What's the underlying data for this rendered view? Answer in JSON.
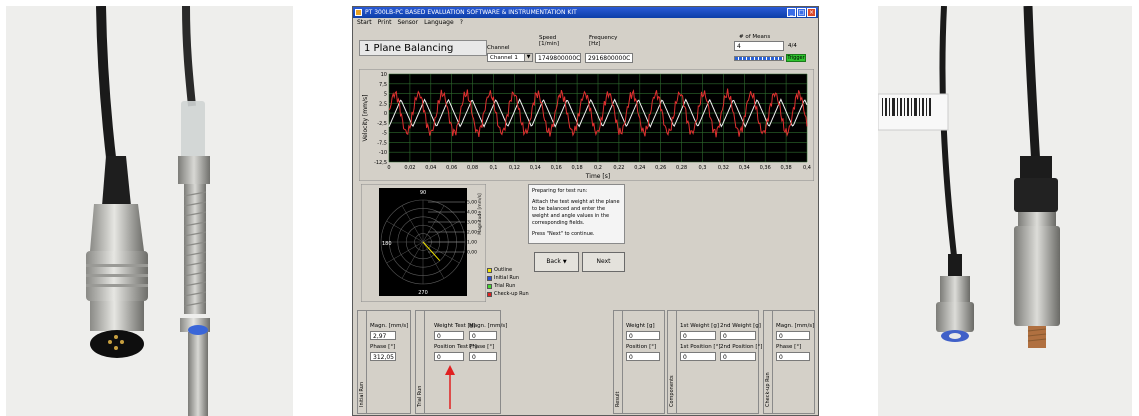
{
  "window": {
    "title": "PT 300LB-PC BASED EVALUATION SOFTWARE & INSTRUMENTATION KIT",
    "menu": [
      "Start",
      "Print",
      "Sensor",
      "Language",
      "?"
    ]
  },
  "header": {
    "panel_title": "1 Plane Balancing",
    "channel_label": "Channel",
    "channel_value": "Channel 1",
    "speed_label": "Speed",
    "speed_unit": "[1/min]",
    "speed_value": "1749800000C",
    "frequency_label": "Frequency",
    "frequency_unit": "[Hz]",
    "frequency_value": "2916800000C",
    "means_label": "# of Means",
    "means_value": "4",
    "means_counter": "4/4",
    "means_progress": 1.0,
    "trigger_label": "Trigger"
  },
  "chart_data": {
    "type": "line",
    "xlabel": "Time [s]",
    "ylabel": "Velocity [mm/s]",
    "x_ticks": [
      "0",
      "0,02",
      "0,04",
      "0,06",
      "0,08",
      "0,1",
      "0,12",
      "0,14",
      "0,16",
      "0,18",
      "0,2",
      "0,22",
      "0,24",
      "0,26",
      "0,28",
      "0,3",
      "0,32",
      "0,34",
      "0,36",
      "0,38",
      "0,4"
    ],
    "y_ticks": [
      "10",
      "7,5",
      "5",
      "2,5",
      "0",
      "-2,5",
      "-5",
      "-7,5",
      "-10",
      "-12,5"
    ],
    "xlim": [
      0,
      0.4
    ],
    "ylim": [
      -12.5,
      10
    ],
    "grid": true,
    "series": [
      {
        "color": "#e03030",
        "wave": {
          "amplitude": 5,
          "frequency_hz": 44,
          "noise": 0.9
        }
      },
      {
        "color": "#f2f2f2",
        "wave": {
          "amplitude": 3.5,
          "frequency_hz": 44,
          "shape": "triangle"
        }
      }
    ]
  },
  "polar": {
    "angle_top": "90",
    "angle_left": "180",
    "angle_bottom": "270",
    "ring_labels": [
      "5,00",
      "4,00",
      "3,00",
      "2,00",
      "1,00",
      "0,00"
    ],
    "axis_label": "Magnitude [mm/s]",
    "vector": {
      "magnitude": 2.97,
      "angle_deg": 312
    }
  },
  "legend": [
    {
      "label": "Outline",
      "color": "#f2e400"
    },
    {
      "label": "Initial Run",
      "color": "#2a4ed8"
    },
    {
      "label": "Trial Run",
      "color": "#44d830"
    },
    {
      "label": "Check-up Run",
      "color": "#e02020"
    }
  ],
  "instructions": {
    "title": "Preparing for test run:",
    "body": "Attach the test weight at the plane to be balanced and enter the weight and angle values in the corresponding fields.",
    "hint": "Press \"Next\" to continue."
  },
  "buttons": {
    "back": "Back",
    "next": "Next"
  },
  "initial_run": {
    "group_label": "Initial Run",
    "magn_label": "Magn. [mm/s]",
    "magn_value": "2,97",
    "phase_label": "Phase [°]",
    "phase_value": "312,05"
  },
  "trial_run": {
    "group_label": "Trial Run",
    "weight_label": "Weight Test [g]",
    "weight_value": "0",
    "position_label": "Position Test [°]",
    "position_value": "0",
    "magn_label": "Magn. [mm/s]",
    "magn_value": "0",
    "phase_label": "Phase [°]",
    "phase_value": "0"
  },
  "result": {
    "group_label": "Result",
    "weight_label": "Weight [g]",
    "weight_value": "0",
    "position_label": "Position [°]",
    "position_value": "0"
  },
  "components": {
    "group_label": "Components",
    "w1_label": "1st Weight [g]",
    "w1_value": "0",
    "w2_label": "2nd Weight [g]",
    "w2_value": "0",
    "p1_label": "1st Position [°]",
    "p1_value": "0",
    "p2_label": "2nd Position [°]",
    "p2_value": "0"
  },
  "checkup_run": {
    "group_label": "Check-up Run",
    "magn_label": "Magn. [mm/s]",
    "magn_value": "0",
    "phase_label": "Phase [°]",
    "phase_value": "0"
  },
  "colors": {
    "highlight_arrow": "#e02020",
    "window_bg": "#d4d0c8",
    "chart_bg": "#000000"
  }
}
